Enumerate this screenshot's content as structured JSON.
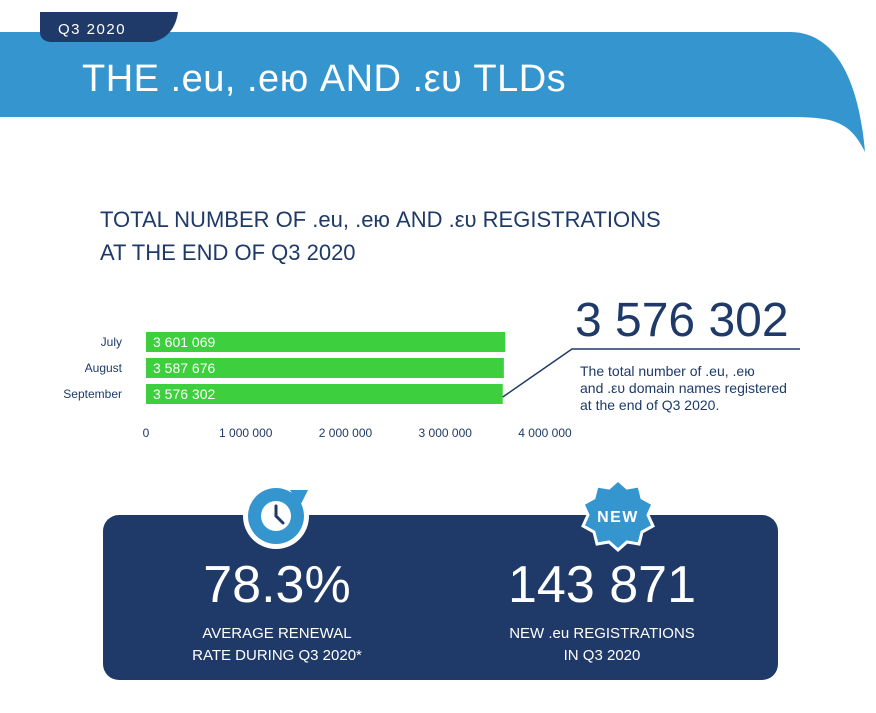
{
  "header": {
    "quarter_tag": "Q3 2020",
    "title": "THE .eu, .ею AND .ευ TLDs"
  },
  "section": {
    "title_line1": "TOTAL NUMBER OF .eu, .ею AND .ευ REGISTRATIONS",
    "title_line2": "AT THE END OF Q3 2020"
  },
  "highlight": {
    "value": "3 576 302",
    "desc_line1": "The total number of .eu, .ею",
    "desc_line2": "and .ευ domain names registered",
    "desc_line3": "at the end of Q3 2020."
  },
  "stats": {
    "renewal_value": "78.3%",
    "renewal_label_line1": "AVERAGE RENEWAL",
    "renewal_label_line2": "RATE DURING Q3 2020*",
    "new_value": "143 871",
    "new_label_line1": "NEW .eu REGISTRATIONS",
    "new_label_line2": "IN Q3 2020",
    "new_badge_text": "NEW"
  },
  "icons": {
    "renewal": "clock-refresh-icon",
    "new": "new-badge-icon"
  },
  "colors": {
    "banner": "#3596cf",
    "tag": "#1f3a68",
    "bar": "#3dcf3d",
    "navy": "#1f3a68",
    "axis_text": "#1f3a68"
  },
  "chart_data": {
    "type": "bar",
    "orientation": "horizontal",
    "categories": [
      "July",
      "August",
      "September"
    ],
    "values": [
      3601069,
      3587676,
      3576302
    ],
    "value_labels": [
      "3 601 069",
      "3 587 676",
      "3 576 302"
    ],
    "x_ticks": [
      0,
      1000000,
      2000000,
      3000000,
      4000000
    ],
    "x_tick_labels": [
      "0",
      "1 000 000",
      "2 000 000",
      "3 000 000",
      "4 000 000"
    ],
    "xlim": [
      0,
      4000000
    ],
    "grid": false
  }
}
